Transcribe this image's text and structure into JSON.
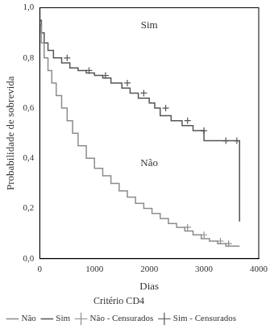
{
  "chart_data": {
    "type": "line",
    "x_label": "Dias",
    "y_label": "Probabilidade de sobrevida",
    "legend_title": "Critério CD4",
    "legend": "bottom",
    "grid": false,
    "xlim": [
      0,
      4000
    ],
    "xticks": [
      0,
      1000,
      2000,
      3000,
      4000
    ],
    "ylim": [
      0,
      1
    ],
    "yticks": [
      {
        "value": 0,
        "label": "0,0"
      },
      {
        "value": 0.2,
        "label": "0,2"
      },
      {
        "value": 0.4,
        "label": "0,4"
      },
      {
        "value": 0.6,
        "label": "0,6"
      },
      {
        "value": 0.8,
        "label": "0,8"
      },
      {
        "value": 1,
        "label": "1,0"
      }
    ],
    "annotations": [
      {
        "text": "Sim",
        "x": 2000,
        "y": 0.93
      },
      {
        "text": "Não",
        "x": 2000,
        "y": 0.38
      }
    ],
    "series": [
      {
        "name": "Não",
        "color": "#8c8c8c",
        "type": "line",
        "line_style": "step",
        "marker": "none",
        "x": [
          0,
          30,
          80,
          150,
          220,
          300,
          400,
          500,
          600,
          700,
          850,
          1000,
          1150,
          1300,
          1450,
          1600,
          1750,
          1900,
          2050,
          2200,
          2350,
          2500,
          2650,
          2800,
          2950,
          3100,
          3250,
          3400,
          3550,
          3650
        ],
        "values": [
          1.0,
          0.93,
          0.86,
          0.8,
          0.75,
          0.7,
          0.65,
          0.6,
          0.55,
          0.5,
          0.45,
          0.4,
          0.36,
          0.33,
          0.3,
          0.27,
          0.245,
          0.22,
          0.2,
          0.18,
          0.16,
          0.14,
          0.125,
          0.11,
          0.095,
          0.08,
          0.07,
          0.06,
          0.05,
          0.05
        ]
      },
      {
        "name": "Sim",
        "color": "#555555",
        "type": "line",
        "line_style": "step",
        "marker": "none",
        "x": [
          0,
          30,
          80,
          150,
          250,
          400,
          550,
          700,
          850,
          1000,
          1150,
          1300,
          1500,
          1650,
          1800,
          2000,
          2100,
          2200,
          2400,
          2600,
          2800,
          3000,
          3200,
          3650,
          3660
        ],
        "values": [
          1.0,
          0.95,
          0.9,
          0.86,
          0.83,
          0.8,
          0.78,
          0.76,
          0.75,
          0.74,
          0.73,
          0.72,
          0.7,
          0.68,
          0.66,
          0.64,
          0.62,
          0.6,
          0.57,
          0.55,
          0.53,
          0.51,
          0.47,
          0.47,
          0.15
        ]
      },
      {
        "name": "Não - Censurados",
        "color": "#8c8c8c",
        "type": "scatter",
        "marker": "cross",
        "x": [
          2700,
          3000,
          3300,
          3450
        ],
        "values": [
          0.125,
          0.095,
          0.07,
          0.06
        ]
      },
      {
        "name": "Sim - Censurados",
        "color": "#555555",
        "type": "scatter",
        "marker": "cross",
        "x": [
          500,
          900,
          1200,
          1600,
          1900,
          2300,
          2700,
          3000,
          3400,
          3600
        ],
        "values": [
          0.8,
          0.75,
          0.73,
          0.7,
          0.66,
          0.6,
          0.55,
          0.51,
          0.47,
          0.47
        ]
      }
    ]
  }
}
